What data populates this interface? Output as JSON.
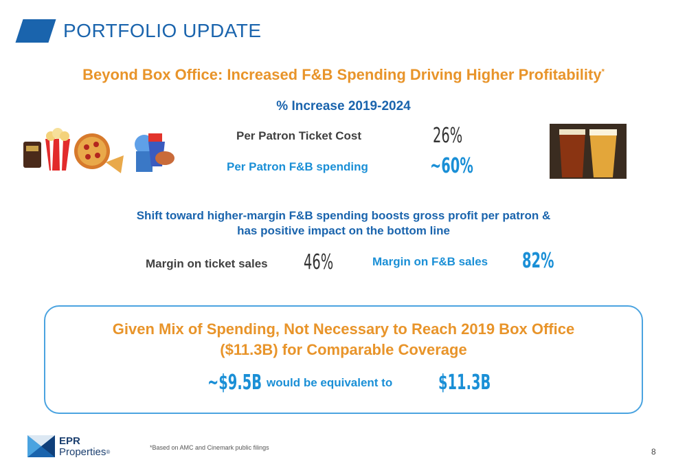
{
  "header": {
    "title": "PORTFOLIO UPDATE"
  },
  "headline": {
    "text": "Beyond Box Office: Increased F&B Spending Driving Higher Profitability",
    "marker": "*"
  },
  "comparison": {
    "heading": "% Increase 2019-2024",
    "rows": [
      {
        "label": "Per Patron Ticket Cost",
        "value": "26%"
      },
      {
        "label": "Per Patron F&B spending",
        "value": "~60%"
      }
    ]
  },
  "shift": {
    "line1": "Shift toward higher-margin F&B spending boosts gross profit per patron &",
    "line2": "has positive impact on the bottom line"
  },
  "margins": {
    "ticket_label": "Margin on ticket sales",
    "ticket_value": "46%",
    "fb_label": "Margin on F&B sales",
    "fb_value": "82%"
  },
  "callout": {
    "line1": "Given Mix of Spending, Not Necessary to Reach 2019 Box Office",
    "line2": "($11.3B) for Comparable Coverage",
    "left_value": "~$9.5B",
    "middle_text": "would be equivalent to",
    "right_value": "$11.3B"
  },
  "footer": {
    "footnote": "*Based on AMC and Cinemark public filings",
    "page_number": "8",
    "logo_line1": "EPR",
    "logo_line2": "Properties",
    "logo_mark": "®"
  },
  "colors": {
    "brand_blue": "#1a64ad",
    "accent_blue": "#1a8fd6",
    "accent_orange": "#e8942a"
  },
  "icons": [
    "snacks-image",
    "beer-image",
    "epr-logo-icon"
  ]
}
